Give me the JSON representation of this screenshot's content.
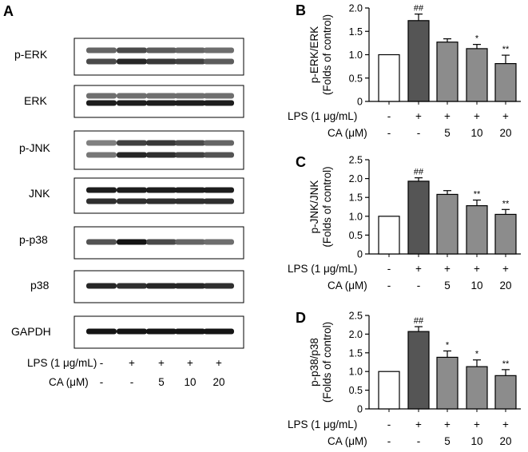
{
  "panel_a": {
    "letter": "A",
    "blots": [
      "p-ERK",
      "ERK",
      "p-JNK",
      "JNK",
      "p-p38",
      "p38",
      "GAPDH"
    ],
    "lps_label": "LPS (1 μg/mL)",
    "ca_label": "CA (μM)",
    "lps_values": [
      "-",
      "+",
      "+",
      "+",
      "+"
    ],
    "ca_values": [
      "-",
      "-",
      "5",
      "10",
      "20"
    ]
  },
  "chart_data": [
    {
      "type": "bar",
      "panel": "B",
      "ylabel": [
        "p-ERK/ERK",
        "(Folds of control)"
      ],
      "ylim": [
        0,
        2.0
      ],
      "yticks": [
        "0",
        "0.5",
        "1.0",
        "1.5",
        "2.0"
      ],
      "values": [
        1.0,
        1.73,
        1.27,
        1.13,
        0.81
      ],
      "errors": [
        0,
        0.14,
        0.07,
        0.09,
        0.18
      ],
      "significance": [
        "",
        "##",
        "",
        "*",
        "**"
      ],
      "bar_colors": [
        "#ffffff",
        "#555555",
        "#8c8c8c",
        "#8c8c8c",
        "#8c8c8c"
      ],
      "lps_label": "LPS (1 μg/mL)",
      "ca_label": "CA (μM)",
      "lps_values": [
        "-",
        "+",
        "+",
        "+",
        "+"
      ],
      "ca_values": [
        "-",
        "-",
        "5",
        "10",
        "20"
      ]
    },
    {
      "type": "bar",
      "panel": "C",
      "ylabel": [
        "p-JNK/JNK",
        "(Folds of control)"
      ],
      "ylim": [
        0,
        2.5
      ],
      "yticks": [
        "0",
        "0.5",
        "1.0",
        "1.5",
        "2.0",
        "2.5"
      ],
      "values": [
        1.0,
        1.93,
        1.58,
        1.28,
        1.05
      ],
      "errors": [
        0,
        0.09,
        0.1,
        0.15,
        0.13
      ],
      "significance": [
        "",
        "##",
        "",
        "**",
        "**"
      ],
      "bar_colors": [
        "#ffffff",
        "#555555",
        "#8c8c8c",
        "#8c8c8c",
        "#8c8c8c"
      ],
      "lps_label": "LPS (1 μg/mL)",
      "ca_label": "CA (μM)",
      "lps_values": [
        "-",
        "+",
        "+",
        "+",
        "+"
      ],
      "ca_values": [
        "-",
        "-",
        "5",
        "10",
        "20"
      ]
    },
    {
      "type": "bar",
      "panel": "D",
      "ylabel": [
        "p-p38/p38",
        "(Folds of control)"
      ],
      "ylim": [
        0,
        2.5
      ],
      "yticks": [
        "0",
        "0.5",
        "1.0",
        "1.5",
        "2.0",
        "2.5"
      ],
      "values": [
        1.0,
        2.07,
        1.38,
        1.13,
        0.89
      ],
      "errors": [
        0,
        0.13,
        0.17,
        0.18,
        0.16
      ],
      "significance": [
        "",
        "##",
        "*",
        "*",
        "**"
      ],
      "bar_colors": [
        "#ffffff",
        "#555555",
        "#8c8c8c",
        "#8c8c8c",
        "#8c8c8c"
      ],
      "lps_label": "LPS (1 μg/mL)",
      "ca_label": "CA (μM)",
      "lps_values": [
        "-",
        "+",
        "+",
        "+",
        "+"
      ],
      "ca_values": [
        "-",
        "-",
        "5",
        "10",
        "20"
      ]
    }
  ]
}
